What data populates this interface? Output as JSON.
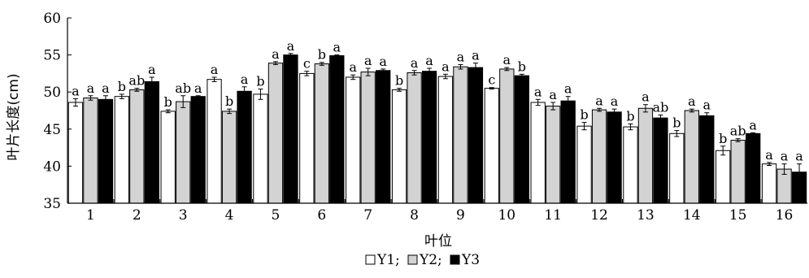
{
  "chart_data": {
    "type": "bar",
    "ylabel": "叶片长度(cm)",
    "xlabel": "叶位",
    "ylim": [
      35,
      60
    ],
    "yticks": [
      35,
      40,
      45,
      50,
      55,
      60
    ],
    "grid": false,
    "legend_position": "bottom-center",
    "categories": [
      "1",
      "2",
      "3",
      "4",
      "5",
      "6",
      "7",
      "8",
      "9",
      "10",
      "11",
      "12",
      "13",
      "14",
      "15",
      "16"
    ],
    "series": [
      {
        "name": "Y1",
        "color": "#ffffff",
        "values": [
          48.6,
          49.4,
          47.4,
          51.7,
          49.7,
          52.5,
          52.0,
          50.3,
          52.1,
          50.5,
          48.6,
          45.4,
          45.3,
          44.4,
          42.1,
          40.3
        ],
        "errors": [
          0.5,
          0.3,
          0.2,
          0.3,
          0.7,
          0.3,
          0.3,
          0.2,
          0.3,
          0.1,
          0.4,
          0.5,
          0.4,
          0.4,
          0.6,
          0.2
        ],
        "letters": [
          "a",
          "b",
          "b",
          "a",
          "b",
          "c",
          "a",
          "b",
          "a",
          "c",
          "a",
          "b",
          "b",
          "b",
          "b",
          "a"
        ]
      },
      {
        "name": "Y2",
        "color": "#d3d3d3",
        "values": [
          49.2,
          50.3,
          48.7,
          47.4,
          53.9,
          53.8,
          52.7,
          52.6,
          53.4,
          53.1,
          48.1,
          47.6,
          47.8,
          47.5,
          43.5,
          39.6
        ],
        "errors": [
          0.3,
          0.2,
          0.8,
          0.3,
          0.2,
          0.2,
          0.5,
          0.3,
          0.3,
          0.2,
          0.5,
          0.2,
          0.5,
          0.2,
          0.2,
          0.7
        ],
        "letters": [
          "a",
          "ab",
          "ab",
          "b",
          "a",
          "b",
          "a",
          "a",
          "a",
          "a",
          "a",
          "a",
          "a",
          "a",
          "ab",
          "a"
        ]
      },
      {
        "name": "Y3",
        "color": "#000000",
        "values": [
          49.0,
          51.4,
          49.4,
          50.1,
          55.0,
          54.9,
          52.9,
          52.8,
          53.3,
          52.2,
          48.8,
          47.3,
          46.5,
          46.8,
          44.4,
          39.2
        ],
        "errors": [
          0.5,
          0.6,
          0.1,
          0.6,
          0.2,
          0.1,
          0.2,
          0.4,
          0.6,
          0.2,
          0.6,
          0.4,
          0.4,
          0.4,
          0.1,
          1.1
        ],
        "letters": [
          "a",
          "a",
          "a",
          "a",
          "a",
          "a",
          "a",
          "a",
          "a",
          "b",
          "a",
          "a",
          "ab",
          "a",
          "a",
          "a"
        ]
      }
    ]
  }
}
